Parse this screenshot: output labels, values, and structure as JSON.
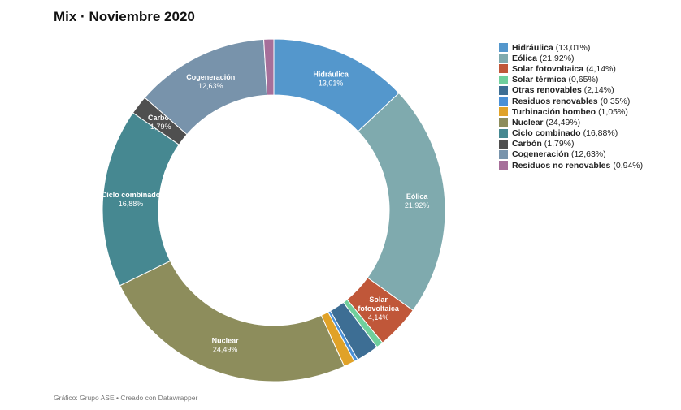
{
  "title": "Mix · Noviembre 2020",
  "footer": "Gráfico: Grupo ASE • Creado con Datawrapper",
  "chart_data": {
    "type": "pie",
    "title": "Mix · Noviembre 2020",
    "donut": true,
    "legend_position": "right",
    "series": [
      {
        "name": "Hidráulica",
        "value": 13.01,
        "value_label": "13,01%",
        "color": "#5497cc",
        "label_lines": [
          "Hidráulica"
        ]
      },
      {
        "name": "Eólica",
        "value": 21.92,
        "value_label": "21,92%",
        "color": "#7faaae",
        "label_lines": [
          "Eólica"
        ]
      },
      {
        "name": "Solar fotovoltaica",
        "value": 4.14,
        "value_label": "4,14%",
        "color": "#c05739",
        "label_lines": [
          "Solar",
          "fotovoltaica"
        ]
      },
      {
        "name": "Solar térmica",
        "value": 0.65,
        "value_label": "0,65%",
        "color": "#6fcf9c",
        "label_lines": []
      },
      {
        "name": "Otras renovables",
        "value": 2.14,
        "value_label": "2,14%",
        "color": "#3d6e94",
        "label_lines": []
      },
      {
        "name": "Residuos renovables",
        "value": 0.35,
        "value_label": "0,35%",
        "color": "#4a90d6",
        "label_lines": []
      },
      {
        "name": "Turbinación bombeo",
        "value": 1.05,
        "value_label": "1,05%",
        "color": "#e0a228",
        "label_lines": []
      },
      {
        "name": "Nuclear",
        "value": 24.49,
        "value_label": "24,49%",
        "color": "#8d8d5c",
        "label_lines": [
          "Nuclear"
        ]
      },
      {
        "name": "Ciclo combinado",
        "value": 16.88,
        "value_label": "16,88%",
        "color": "#468891",
        "label_lines": [
          "Ciclo combinado"
        ]
      },
      {
        "name": "Carbón",
        "value": 1.79,
        "value_label": "1,79%",
        "color": "#4f4f4f",
        "label_lines": [
          "Carbón"
        ]
      },
      {
        "name": "Cogeneración",
        "value": 12.63,
        "value_label": "12,63%",
        "color": "#7893ab",
        "label_lines": [
          "Cogeneración"
        ]
      },
      {
        "name": "Residuos no renovables",
        "value": 0.94,
        "value_label": "0,94%",
        "color": "#a66f9a",
        "label_lines": []
      }
    ]
  }
}
